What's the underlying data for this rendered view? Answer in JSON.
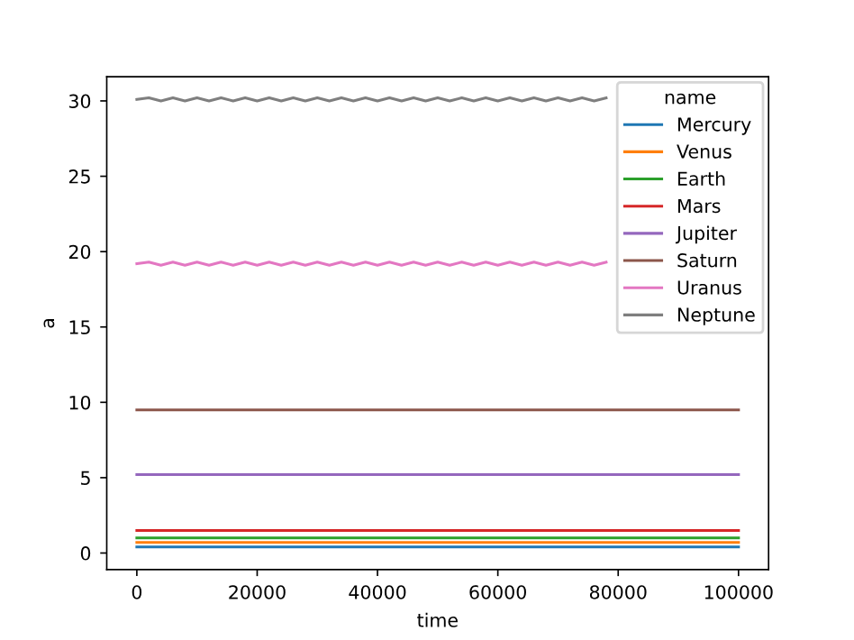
{
  "chart_data": {
    "type": "line",
    "xlabel": "time",
    "ylabel": "a",
    "legend_title": "name",
    "legend": "top right",
    "grid": false,
    "xlim": [
      -5000,
      105000
    ],
    "ylim": [
      -1.1,
      31.6
    ],
    "xticks": [
      0,
      20000,
      40000,
      60000,
      80000,
      100000
    ],
    "yticks": [
      0,
      5,
      10,
      15,
      20,
      25,
      30
    ],
    "series": [
      {
        "name": "Mercury",
        "color": "#1f77b4",
        "x": [
          0,
          100000
        ],
        "values": [
          0.4,
          0.4
        ]
      },
      {
        "name": "Venus",
        "color": "#ff7f0e",
        "x": [
          0,
          100000
        ],
        "values": [
          0.7,
          0.7
        ]
      },
      {
        "name": "Earth",
        "color": "#2ca02c",
        "x": [
          0,
          100000
        ],
        "values": [
          1.0,
          1.0
        ]
      },
      {
        "name": "Mars",
        "color": "#d62728",
        "x": [
          0,
          100000
        ],
        "values": [
          1.5,
          1.5
        ]
      },
      {
        "name": "Jupiter",
        "color": "#9467bd",
        "x": [
          0,
          100000
        ],
        "values": [
          5.2,
          5.2
        ]
      },
      {
        "name": "Saturn",
        "color": "#8c564b",
        "x": [
          0,
          100000
        ],
        "values": [
          9.5,
          9.5
        ]
      },
      {
        "name": "Uranus",
        "color": "#e377c2",
        "x": [
          0,
          2000,
          4000,
          6000,
          8000,
          10000,
          12000,
          14000,
          16000,
          18000,
          20000,
          22000,
          24000,
          26000,
          28000,
          30000,
          32000,
          34000,
          36000,
          38000,
          40000,
          42000,
          44000,
          46000,
          48000,
          50000,
          52000,
          54000,
          56000,
          58000,
          60000,
          62000,
          64000,
          66000,
          68000,
          70000,
          72000,
          74000,
          76000,
          78000
        ],
        "values": [
          19.2,
          19.3,
          19.1,
          19.3,
          19.1,
          19.3,
          19.1,
          19.3,
          19.1,
          19.3,
          19.1,
          19.3,
          19.1,
          19.3,
          19.1,
          19.3,
          19.1,
          19.3,
          19.1,
          19.3,
          19.1,
          19.3,
          19.1,
          19.3,
          19.1,
          19.3,
          19.1,
          19.3,
          19.1,
          19.3,
          19.1,
          19.3,
          19.1,
          19.3,
          19.1,
          19.3,
          19.1,
          19.3,
          19.1,
          19.3
        ]
      },
      {
        "name": "Neptune",
        "color": "#7f7f7f",
        "x": [
          0,
          2000,
          4000,
          6000,
          8000,
          10000,
          12000,
          14000,
          16000,
          18000,
          20000,
          22000,
          24000,
          26000,
          28000,
          30000,
          32000,
          34000,
          36000,
          38000,
          40000,
          42000,
          44000,
          46000,
          48000,
          50000,
          52000,
          54000,
          56000,
          58000,
          60000,
          62000,
          64000,
          66000,
          68000,
          70000,
          72000,
          74000,
          76000,
          78000
        ],
        "values": [
          30.1,
          30.2,
          30.0,
          30.2,
          30.0,
          30.2,
          30.0,
          30.2,
          30.0,
          30.2,
          30.0,
          30.2,
          30.0,
          30.2,
          30.0,
          30.2,
          30.0,
          30.2,
          30.0,
          30.2,
          30.0,
          30.2,
          30.0,
          30.2,
          30.0,
          30.2,
          30.0,
          30.2,
          30.0,
          30.2,
          30.0,
          30.2,
          30.0,
          30.2,
          30.0,
          30.2,
          30.0,
          30.2,
          30.0,
          30.2
        ]
      }
    ]
  }
}
